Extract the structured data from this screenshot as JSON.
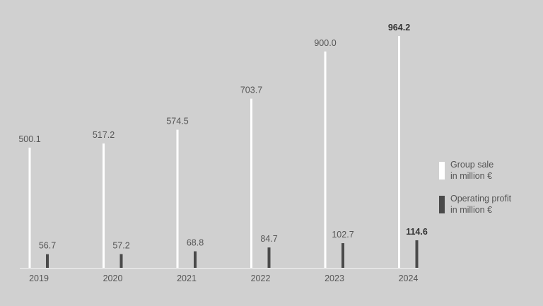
{
  "chart_data": {
    "type": "bar",
    "categories": [
      "2019",
      "2020",
      "2021",
      "2022",
      "2023",
      "2024"
    ],
    "series": [
      {
        "name": "Group sale\nin million €",
        "color": "#ffffff",
        "values": [
          500.1,
          517.2,
          574.5,
          703.7,
          900.0,
          964.2
        ],
        "value_labels": [
          "500.1",
          "517.2",
          "574.5",
          "703.7",
          "900.0",
          "964.2"
        ]
      },
      {
        "name": "Operating profit\nin million €",
        "color": "#4a4a4a",
        "values": [
          56.7,
          57.2,
          68.8,
          84.7,
          102.7,
          114.6
        ],
        "value_labels": [
          "56.7",
          "57.2",
          "68.8",
          "84.7",
          "102.7",
          "114.6"
        ]
      }
    ]
  }
}
